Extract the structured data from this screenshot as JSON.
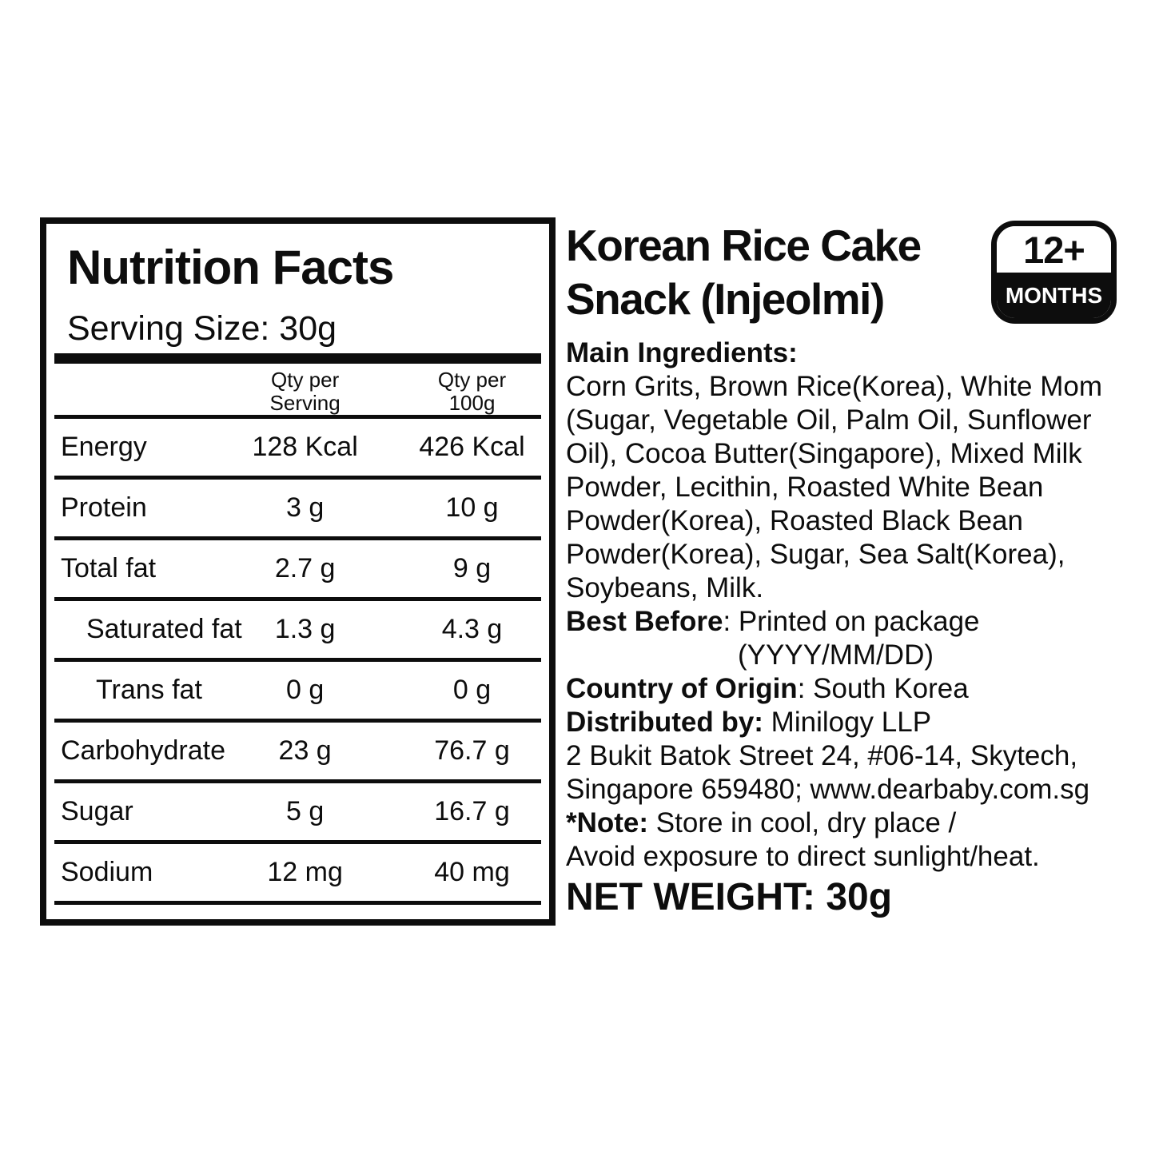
{
  "colors": {
    "ink": "#0d0d0d",
    "paper": "#ffffff"
  },
  "nutrition_panel": {
    "title": "Nutrition Facts",
    "serving_size": "Serving Size: 30g",
    "columns": {
      "serving_line1": "Qty per",
      "serving_line2": "Serving",
      "per100_line1": "Qty per",
      "per100_line2": "100g"
    },
    "rows": [
      {
        "label": "Energy",
        "per_serving": "128 Kcal",
        "per_100g": "426 Kcal"
      },
      {
        "label": "Protein",
        "per_serving": "3 g",
        "per_100g": "10 g"
      },
      {
        "label": "Total fat",
        "per_serving": "2.7 g",
        "per_100g": "9 g"
      },
      {
        "label": "Saturated fat",
        "per_serving": "1.3 g",
        "per_100g": "4.3 g"
      },
      {
        "label": "Trans fat",
        "per_serving": "0 g",
        "per_100g": "0 g"
      },
      {
        "label": "Carbohydrate",
        "per_serving": "23 g",
        "per_100g": "76.7 g"
      },
      {
        "label": "Sugar",
        "per_serving": "5 g",
        "per_100g": "16.7 g"
      },
      {
        "label": "Sodium",
        "per_serving": "12 mg",
        "per_100g": "40 mg"
      }
    ]
  },
  "product": {
    "title_line1": "Korean Rice Cake",
    "title_line2": "Snack (Injeolmi)",
    "age_badge_top": "12+",
    "age_badge_bottom": "MONTHS",
    "main_ingredients_label": "Main Ingredients:",
    "ingredients_lines": [
      "Corn Grits, Brown Rice(Korea), White Mom",
      "(Sugar, Vegetable Oil, Palm Oil, Sunflower",
      "Oil), Cocoa Butter(Singapore), Mixed Milk",
      "Powder, Lecithin, Roasted White Bean",
      "Powder(Korea), Roasted Black Bean",
      "Powder(Korea), Sugar, Sea Salt(Korea),",
      "Soybeans, Milk."
    ],
    "best_before_label": "Best Before",
    "best_before_rest": ": Printed on package",
    "best_before_line2": "(YYYY/MM/DD)",
    "origin_label": "Country of Origin",
    "origin_rest": ": South Korea",
    "distributor_label": "Distributed by:",
    "distributor_rest": " Minilogy LLP",
    "address_line1": "2 Bukit Batok Street 24, #06-14, Skytech,",
    "address_line2": "Singapore 659480; www.dearbaby.com.sg",
    "note_label": "*Note:",
    "note_rest": " Store in cool, dry place /",
    "note_line2": "Avoid exposure to direct sunlight/heat.",
    "net_weight": "NET WEIGHT: 30g"
  }
}
